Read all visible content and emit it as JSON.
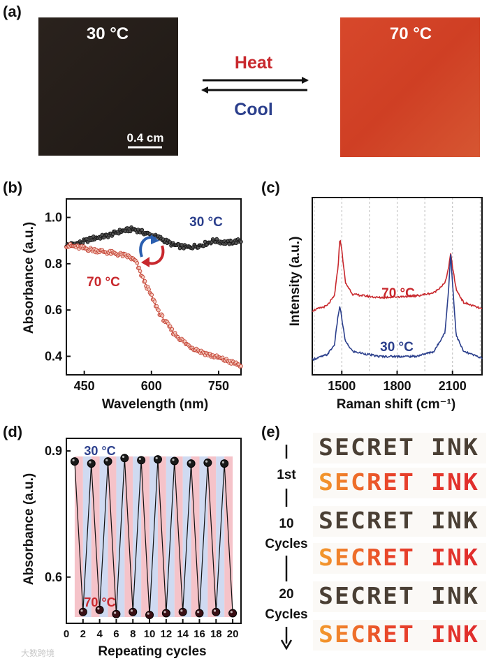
{
  "colors": {
    "cold": "#2b3f8c",
    "hot": "#c8282d",
    "axis": "#111111",
    "film_cold": "#231c18",
    "film_hot": "#d64a2a"
  },
  "panel_a": {
    "label": "(a)",
    "cold_temp": "30 °C",
    "hot_temp": "70 °C",
    "heat_label": "Heat",
    "cool_label": "Cool",
    "scale_label": "0.4 cm"
  },
  "ink_word": "SECRET INK",
  "chart_data": [
    {
      "panel": "(b)",
      "type": "line",
      "title": "",
      "xlabel": "Wavelength (nm)",
      "ylabel": "Absorbance (a.u.)",
      "xlim": [
        410,
        800
      ],
      "ylim": [
        0.32,
        1.08
      ],
      "xticks": [
        450,
        600,
        750
      ],
      "yticks": [
        0.4,
        0.6,
        0.8,
        1.0
      ],
      "xticklabels": [
        "450",
        "600",
        "750"
      ],
      "yticklabels": [
        "0.4",
        "0.6",
        "0.8",
        "1.0"
      ],
      "series": [
        {
          "name": "30 °C",
          "x": [
            410,
            440,
            470,
            500,
            530,
            560,
            590,
            620,
            650,
            680,
            710,
            740,
            770,
            800
          ],
          "y": [
            0.88,
            0.89,
            0.91,
            0.92,
            0.94,
            0.95,
            0.93,
            0.91,
            0.88,
            0.87,
            0.88,
            0.9,
            0.89,
            0.9
          ]
        },
        {
          "name": "70 °C",
          "x": [
            410,
            440,
            470,
            500,
            530,
            550,
            565,
            580,
            600,
            620,
            650,
            680,
            710,
            740,
            770,
            800
          ],
          "y": [
            0.88,
            0.87,
            0.86,
            0.85,
            0.84,
            0.83,
            0.81,
            0.74,
            0.66,
            0.58,
            0.5,
            0.45,
            0.42,
            0.4,
            0.38,
            0.36
          ]
        }
      ]
    },
    {
      "panel": "(c)",
      "type": "line",
      "title": "",
      "xlabel": "Raman shift (cm⁻¹)",
      "ylabel": "Intensity (a.u.)",
      "xlim": [
        1340,
        2260
      ],
      "xticks": [
        1500,
        1800,
        2100
      ],
      "xticklabels": [
        "1500",
        "1800",
        "2100"
      ],
      "yticks": [],
      "grid": "vertical-dashed",
      "series": [
        {
          "name": "70 °C",
          "x": [
            1340,
            1420,
            1460,
            1480,
            1490,
            1500,
            1520,
            1560,
            1700,
            1900,
            2000,
            2060,
            2080,
            2090,
            2100,
            2120,
            2160,
            2260
          ],
          "y": [
            0.35,
            0.38,
            0.44,
            0.62,
            0.8,
            0.72,
            0.52,
            0.45,
            0.43,
            0.44,
            0.46,
            0.52,
            0.62,
            0.7,
            0.62,
            0.48,
            0.4,
            0.36
          ]
        },
        {
          "name": "30 °C",
          "x": [
            1340,
            1420,
            1460,
            1480,
            1490,
            1500,
            1520,
            1560,
            1700,
            1900,
            2000,
            2060,
            2080,
            2090,
            2100,
            2120,
            2160,
            2260
          ],
          "y": [
            0.05,
            0.08,
            0.14,
            0.32,
            0.38,
            0.3,
            0.16,
            0.1,
            0.07,
            0.07,
            0.1,
            0.22,
            0.5,
            0.7,
            0.52,
            0.2,
            0.1,
            0.06
          ]
        }
      ]
    },
    {
      "panel": "(d)",
      "type": "line",
      "title": "",
      "xlabel": "Repeating cycles",
      "ylabel": "Absorbance (a.u.)",
      "xlim": [
        0,
        21
      ],
      "ylim": [
        0.49,
        0.93
      ],
      "xticks": [
        0,
        2,
        4,
        6,
        8,
        10,
        12,
        14,
        16,
        18,
        20
      ],
      "xticklabels": [
        "0",
        "2",
        "4",
        "6",
        "8",
        "10",
        "12",
        "14",
        "16",
        "18",
        "20"
      ],
      "yticks": [
        0.6,
        0.9
      ],
      "yticklabels": [
        "0.6",
        "0.9"
      ],
      "annotations": [
        "30 °C",
        "70 °C"
      ],
      "series": [
        {
          "name": "Absorbance",
          "x": [
            1,
            2,
            3,
            4,
            5,
            6,
            7,
            8,
            9,
            10,
            11,
            12,
            13,
            14,
            15,
            16,
            17,
            18,
            19,
            20
          ],
          "y": [
            0.875,
            0.517,
            0.87,
            0.522,
            0.875,
            0.512,
            0.883,
            0.517,
            0.878,
            0.51,
            0.88,
            0.514,
            0.876,
            0.517,
            0.87,
            0.514,
            0.872,
            0.517,
            0.87,
            0.514
          ]
        }
      ]
    }
  ],
  "panel_e": {
    "label": "(e)",
    "markers": [
      "1st",
      "10",
      "Cycles",
      "20",
      "Cycles"
    ]
  },
  "watermark": "大数跨境"
}
